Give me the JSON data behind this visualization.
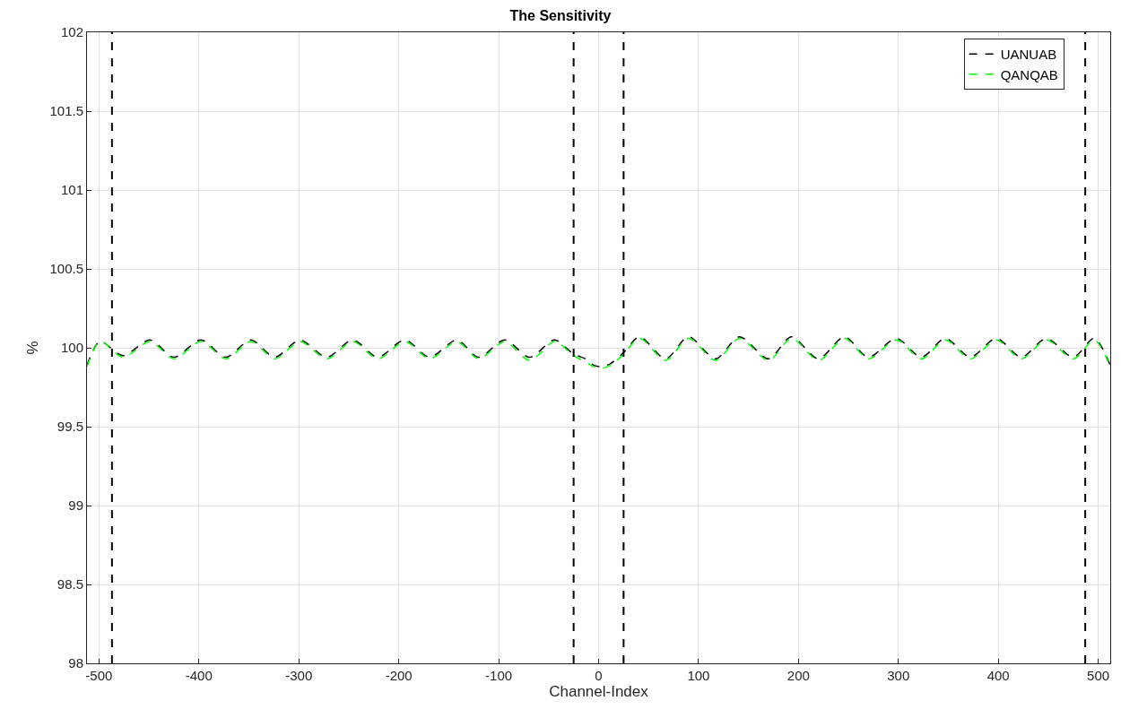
{
  "chart_data": {
    "type": "line",
    "title": "The Sensitivity",
    "xlabel": "Channel-Index",
    "ylabel": "%",
    "x": [
      -512,
      -499,
      -476,
      -449,
      -425,
      -398,
      -373,
      -348,
      -324,
      -299,
      -272,
      -246,
      -221,
      -194,
      -169,
      -142,
      -120,
      -94,
      -69,
      -44,
      -25,
      -13,
      -5,
      3,
      12,
      25,
      41,
      67,
      90,
      117,
      141,
      170,
      193,
      220,
      246,
      270,
      298,
      323,
      347,
      372,
      398,
      423,
      448,
      475,
      496,
      512
    ],
    "series": [
      {
        "name": "UANUAB",
        "color": "#000000",
        "values": [
          99.89,
          100.04,
          99.95,
          100.05,
          99.94,
          100.05,
          99.94,
          100.05,
          99.94,
          100.05,
          99.94,
          100.05,
          99.94,
          100.05,
          99.94,
          100.05,
          99.94,
          100.05,
          99.94,
          100.05,
          99.96,
          99.93,
          99.89,
          99.88,
          99.9,
          99.97,
          100.07,
          99.93,
          100.07,
          99.93,
          100.07,
          99.93,
          100.07,
          99.93,
          100.07,
          99.94,
          100.06,
          99.94,
          100.06,
          99.94,
          100.06,
          99.94,
          100.06,
          99.94,
          100.06,
          99.89
        ]
      },
      {
        "name": "QANQAB",
        "color": "#00ff00",
        "values": [
          99.88,
          100.04,
          99.94,
          100.04,
          99.93,
          100.04,
          99.93,
          100.04,
          99.93,
          100.04,
          99.93,
          100.04,
          99.93,
          100.04,
          99.93,
          100.04,
          99.93,
          100.04,
          99.92,
          100.04,
          99.95,
          99.91,
          99.88,
          99.87,
          99.89,
          99.96,
          100.06,
          99.92,
          100.06,
          99.92,
          100.06,
          99.92,
          100.06,
          99.92,
          100.06,
          99.93,
          100.05,
          99.93,
          100.05,
          99.93,
          100.05,
          99.93,
          100.05,
          99.93,
          100.05,
          99.88
        ]
      }
    ],
    "xlim": [
      -512,
      512
    ],
    "xticks": [
      -500,
      -400,
      -300,
      -200,
      -100,
      0,
      100,
      200,
      300,
      400,
      500
    ],
    "ylim": [
      98,
      102
    ],
    "yticks": [
      98,
      98.5,
      99,
      99.5,
      100,
      100.5,
      101,
      101.5,
      102
    ],
    "ref_lines": [
      {
        "axis": "x",
        "value": -487,
        "color": "#000000",
        "line_style": "dashed"
      },
      {
        "axis": "x",
        "value": -25,
        "color": "#000000",
        "line_style": "dashed"
      },
      {
        "axis": "x",
        "value": 25,
        "color": "#000000",
        "line_style": "dashed"
      },
      {
        "axis": "x",
        "value": 487,
        "color": "#000000",
        "line_style": "dashed"
      }
    ],
    "grid": true,
    "legend": "top right",
    "line_style": "dashed"
  }
}
